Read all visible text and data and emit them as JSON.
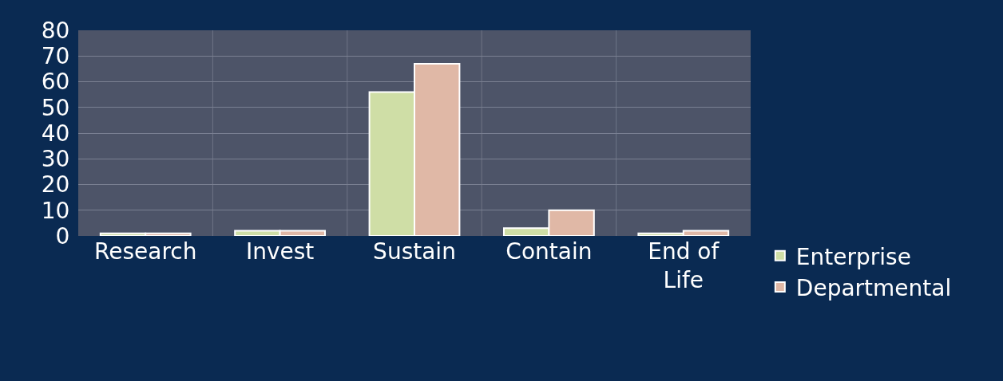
{
  "chart_data": {
    "type": "bar",
    "categories": [
      "Research",
      "Invest",
      "Sustain",
      "Contain",
      "End of Life"
    ],
    "series": [
      {
        "name": "Enterprise",
        "color": "#cfdea6",
        "values": [
          1,
          2,
          56,
          3,
          1
        ]
      },
      {
        "name": "Departmental",
        "color": "#e0b8a6",
        "values": [
          1,
          2,
          67,
          10,
          2
        ]
      }
    ],
    "ylim": [
      0,
      80
    ],
    "yticks": [
      0,
      10,
      20,
      30,
      40,
      50,
      60,
      70,
      80
    ],
    "grid": true,
    "legend": "bottom right"
  }
}
